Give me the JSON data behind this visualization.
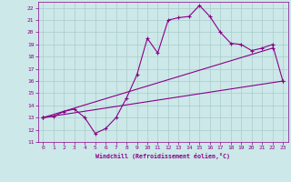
{
  "xlabel": "Windchill (Refroidissement éolien,°C)",
  "xlim": [
    -0.5,
    23.5
  ],
  "ylim": [
    11,
    22.5
  ],
  "xticks": [
    0,
    1,
    2,
    3,
    4,
    5,
    6,
    7,
    8,
    9,
    10,
    11,
    12,
    13,
    14,
    15,
    16,
    17,
    18,
    19,
    20,
    21,
    22,
    23
  ],
  "yticks": [
    11,
    12,
    13,
    14,
    15,
    16,
    17,
    18,
    19,
    20,
    21,
    22
  ],
  "background_color": "#cce8e8",
  "line_color": "#880088",
  "grid_color": "#aacccc",
  "line1_x": [
    0,
    1,
    2,
    3,
    4,
    5,
    6,
    7,
    8,
    9,
    10,
    11,
    12,
    13,
    14,
    15,
    16,
    17,
    18,
    19,
    20,
    21,
    22,
    23
  ],
  "line1_y": [
    13.0,
    13.1,
    13.5,
    13.7,
    13.0,
    11.7,
    12.1,
    13.0,
    14.6,
    16.5,
    19.5,
    18.3,
    21.0,
    21.2,
    21.3,
    22.2,
    21.3,
    20.0,
    19.1,
    19.0,
    18.5,
    18.7,
    19.0,
    16.0
  ],
  "line2_x": [
    0,
    22
  ],
  "line2_y": [
    13.0,
    18.7
  ],
  "line3_x": [
    0,
    23
  ],
  "line3_y": [
    13.0,
    16.0
  ]
}
